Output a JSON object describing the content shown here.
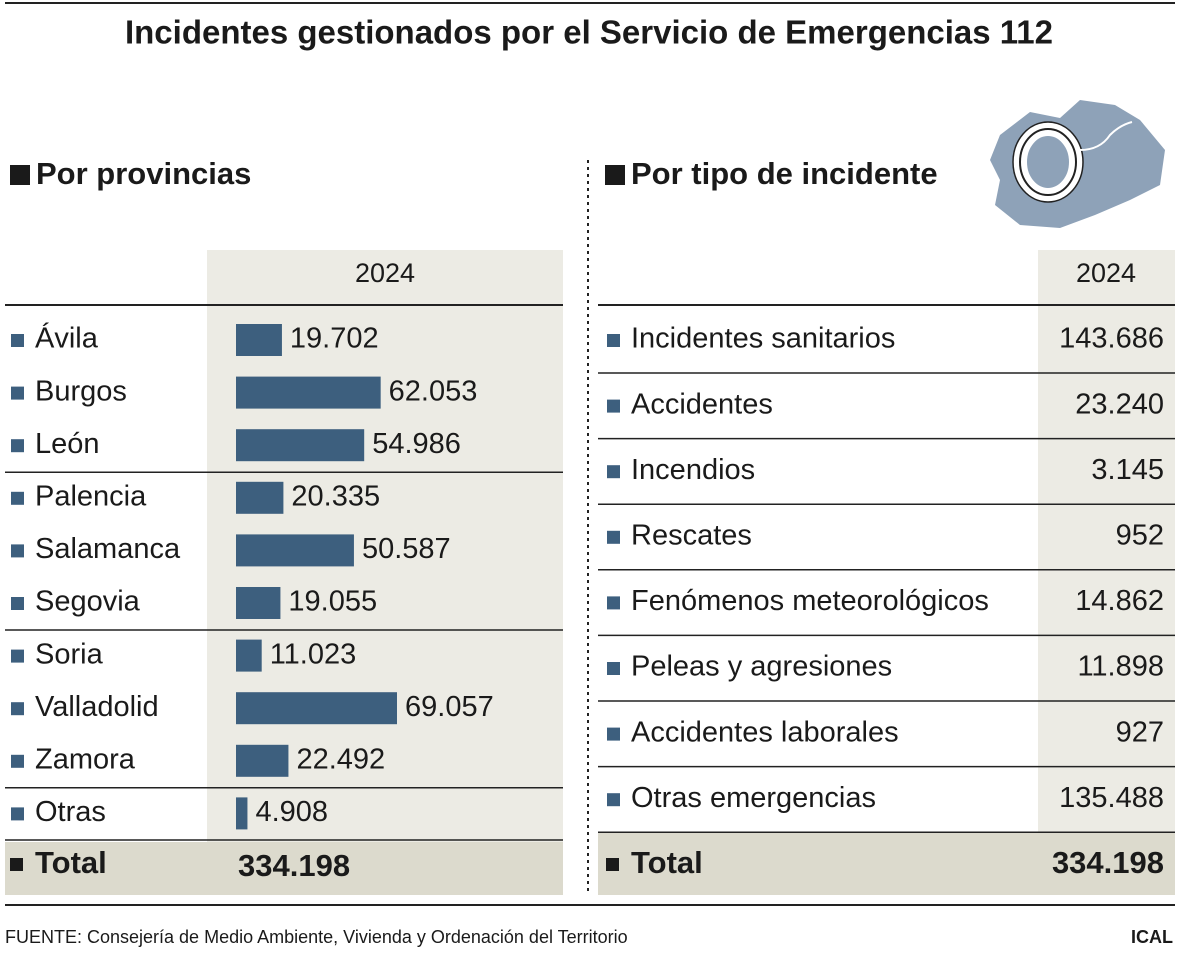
{
  "title": "Incidentes gestionados por el Servicio de Emergencias 112",
  "provinces": {
    "heading": "Por provincias",
    "column": "2024",
    "color": "#3d5f7e",
    "categories": [
      "Ávila",
      "Burgos",
      "León",
      "Palencia",
      "Salamanca",
      "Segovia",
      "Soria",
      "Valladolid",
      "Zamora",
      "Otras"
    ],
    "values": [
      19702,
      62053,
      54986,
      20335,
      50587,
      19055,
      11023,
      69057,
      22492,
      4908
    ],
    "value_labels": [
      "19.702",
      "62.053",
      "54.986",
      "20.335",
      "50.587",
      "19.055",
      "11.023",
      "69.057",
      "22.492",
      "4.908"
    ],
    "total": {
      "label": "Total",
      "value": "334.198"
    }
  },
  "types": {
    "heading": "Por tipo de incidente",
    "column": "2024",
    "rows": [
      [
        "Incidentes sanitarios",
        "143.686"
      ],
      [
        "Accidentes",
        "23.240"
      ],
      [
        "Incendios",
        "3.145"
      ],
      [
        "Rescates",
        "952"
      ],
      [
        "Fenómenos meteorológicos",
        "14.862"
      ],
      [
        "Peleas y agresiones",
        "11.898"
      ],
      [
        "Accidentes laborales",
        "927"
      ],
      [
        "Otras emergencias",
        "135.488"
      ]
    ],
    "total": {
      "label": "Total",
      "value": "334.198"
    }
  },
  "source": "FUENTE: Consejería de Medio Ambiente, Vivienda y Ordenación del Territorio",
  "credit": "ICAL"
}
